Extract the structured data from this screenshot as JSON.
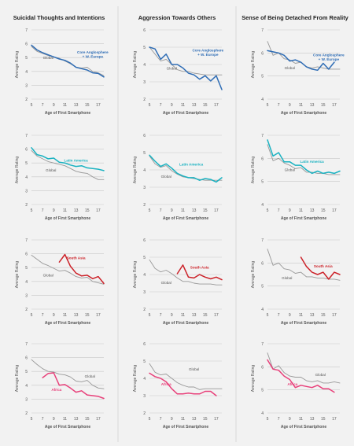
{
  "column_titles": [
    "Suicidal Thoughts and Intentions",
    "Aggression Towards Others",
    "Sense of Being Detached From Reality"
  ],
  "xlabel": "Age of First Smartphone",
  "ylabel": "Average Rating",
  "colors": {
    "background": "#f2f2f2",
    "gridline": "#c8c8c8",
    "global": "#999999",
    "label_text": "#555555",
    "title_text": "#222222"
  },
  "chart_data": [
    {
      "type": "line",
      "row": 0,
      "col": 0,
      "ylim": [
        2,
        7
      ],
      "yticks": [
        2,
        3,
        4,
        5,
        6,
        7
      ],
      "x": [
        5,
        6,
        7,
        8,
        9,
        10,
        11,
        12,
        13,
        14,
        15,
        16,
        17,
        18
      ],
      "series": [
        {
          "name": "Core Anglosphere + W. Europe",
          "color": "#2f6db5",
          "label_text": "Core Anglosphere\n+ W. Europe",
          "label_anchor": [
            16,
            5.3
          ],
          "values": [
            5.9,
            5.55,
            5.35,
            5.2,
            5.05,
            4.9,
            4.8,
            4.6,
            4.3,
            4.2,
            4.1,
            3.9,
            3.85,
            3.6
          ]
        },
        {
          "name": "Global",
          "color": "#999999",
          "label_text": "Global",
          "label_anchor": [
            8,
            4.9
          ],
          "values": [
            5.8,
            5.45,
            5.3,
            5.15,
            5.05,
            4.95,
            4.75,
            4.55,
            4.3,
            4.25,
            4.3,
            4.0,
            3.9,
            3.7
          ]
        }
      ]
    },
    {
      "type": "line",
      "row": 0,
      "col": 1,
      "ylim": [
        2,
        6
      ],
      "yticks": [
        2,
        3,
        4,
        5,
        6
      ],
      "x": [
        5,
        6,
        7,
        8,
        9,
        10,
        11,
        12,
        13,
        14,
        15,
        16,
        17,
        18
      ],
      "series": [
        {
          "name": "Core Anglosphere + W. Europe",
          "color": "#2f6db5",
          "label_text": "Core Anglosphere\n+ W. Europe",
          "label_anchor": [
            15.5,
            4.75
          ],
          "values": [
            5.0,
            4.9,
            4.3,
            4.6,
            4.0,
            4.0,
            3.8,
            3.5,
            3.4,
            3.15,
            3.35,
            3.05,
            3.35,
            2.55
          ]
        },
        {
          "name": "Global",
          "color": "#999999",
          "label_text": "Global",
          "label_anchor": [
            9,
            3.7
          ],
          "values": [
            5.0,
            4.6,
            4.2,
            4.3,
            4.0,
            3.7,
            3.6,
            3.6,
            3.5,
            3.45,
            3.4,
            3.4,
            3.4,
            3.4
          ]
        }
      ]
    },
    {
      "type": "line",
      "row": 0,
      "col": 2,
      "ylim": [
        4,
        7
      ],
      "yticks": [
        4,
        5,
        6,
        7
      ],
      "x": [
        5,
        6,
        7,
        8,
        9,
        10,
        11,
        12,
        13,
        14,
        15,
        16,
        17,
        18
      ],
      "series": [
        {
          "name": "Core Anglosphere + W. Europe",
          "color": "#2f6db5",
          "label_text": "Core Anglosphere\n+ W. Europe",
          "label_anchor": [
            16,
            5.85
          ],
          "values": [
            6.1,
            6.05,
            6.0,
            5.9,
            5.65,
            5.7,
            5.6,
            5.4,
            5.3,
            5.25,
            5.55,
            5.3,
            5.6,
            null
          ]
        },
        {
          "name": "Global",
          "color": "#999999",
          "label_text": "Global",
          "label_anchor": [
            9,
            5.3
          ],
          "values": [
            6.5,
            5.9,
            6.0,
            5.75,
            5.7,
            5.55,
            5.6,
            5.4,
            5.35,
            5.4,
            5.35,
            5.3,
            5.3,
            5.3
          ]
        }
      ]
    },
    {
      "type": "line",
      "row": 1,
      "col": 0,
      "ylim": [
        2,
        7
      ],
      "yticks": [
        2,
        3,
        4,
        5,
        6,
        7
      ],
      "x": [
        5,
        6,
        7,
        8,
        9,
        10,
        11,
        12,
        13,
        14,
        15,
        16,
        17,
        18
      ],
      "series": [
        {
          "name": "Latin America",
          "color": "#1ab2c1",
          "label_text": "Latin America",
          "label_anchor": [
            13,
            5.1
          ],
          "values": [
            6.1,
            5.6,
            5.5,
            5.3,
            5.35,
            5.05,
            5.0,
            4.85,
            4.75,
            4.8,
            4.65,
            4.6,
            4.55,
            4.45
          ]
        },
        {
          "name": "Global",
          "color": "#999999",
          "label_text": "Global",
          "label_anchor": [
            8.5,
            4.4
          ],
          "values": [
            5.9,
            5.5,
            5.3,
            5.1,
            5.0,
            4.9,
            4.8,
            4.6,
            4.4,
            4.3,
            4.25,
            4.0,
            3.8,
            3.8
          ]
        }
      ]
    },
    {
      "type": "line",
      "row": 1,
      "col": 1,
      "ylim": [
        2,
        6
      ],
      "yticks": [
        2,
        3,
        4,
        5,
        6
      ],
      "x": [
        5,
        6,
        7,
        8,
        9,
        10,
        11,
        12,
        13,
        14,
        15,
        16,
        17,
        18
      ],
      "series": [
        {
          "name": "Latin America",
          "color": "#1ab2c1",
          "label_text": "Latin America",
          "label_anchor": [
            12.5,
            4.25
          ],
          "values": [
            4.85,
            4.5,
            4.2,
            4.35,
            4.1,
            3.8,
            3.65,
            3.55,
            3.55,
            3.4,
            3.5,
            3.45,
            3.3,
            3.55
          ]
        },
        {
          "name": "Global",
          "color": "#999999",
          "label_text": "Global",
          "label_anchor": [
            8,
            3.55
          ],
          "values": [
            4.8,
            4.35,
            4.15,
            4.25,
            3.95,
            3.75,
            3.6,
            3.55,
            3.5,
            3.45,
            3.4,
            3.4,
            3.4,
            3.4
          ]
        }
      ]
    },
    {
      "type": "line",
      "row": 1,
      "col": 2,
      "ylim": [
        4,
        7
      ],
      "yticks": [
        4,
        5,
        6,
        7
      ],
      "x": [
        5,
        6,
        7,
        8,
        9,
        10,
        11,
        12,
        13,
        14,
        15,
        16,
        17,
        18
      ],
      "series": [
        {
          "name": "Latin America",
          "color": "#1ab2c1",
          "label_text": "Latin America",
          "label_anchor": [
            13,
            5.8
          ],
          "values": [
            6.8,
            6.1,
            6.25,
            5.85,
            5.85,
            5.7,
            5.7,
            5.5,
            5.35,
            5.45,
            5.35,
            5.4,
            5.35,
            5.45
          ]
        },
        {
          "name": "Global",
          "color": "#999999",
          "label_text": "Global",
          "label_anchor": [
            9,
            5.45
          ],
          "values": [
            6.6,
            5.9,
            6.0,
            5.8,
            5.7,
            5.55,
            5.6,
            5.4,
            5.4,
            5.35,
            5.35,
            5.3,
            5.3,
            5.3
          ]
        }
      ]
    },
    {
      "type": "line",
      "row": 2,
      "col": 0,
      "ylim": [
        2,
        7
      ],
      "yticks": [
        2,
        3,
        4,
        5,
        6,
        7
      ],
      "x": [
        5,
        6,
        7,
        8,
        9,
        10,
        11,
        12,
        13,
        14,
        15,
        16,
        17,
        18
      ],
      "series": [
        {
          "name": "South Asia",
          "color": "#cc2229",
          "label_text": "South Asia",
          "label_anchor": [
            13,
            5.6
          ],
          "values": [
            null,
            null,
            null,
            null,
            null,
            5.4,
            5.95,
            5.1,
            4.6,
            4.4,
            4.45,
            4.2,
            4.35,
            3.85
          ]
        },
        {
          "name": "Global",
          "color": "#999999",
          "label_text": "Global",
          "label_anchor": [
            8,
            4.35
          ],
          "values": [
            5.9,
            5.6,
            5.3,
            5.15,
            4.95,
            4.75,
            4.8,
            4.6,
            4.35,
            4.25,
            4.3,
            4.0,
            3.9,
            3.8
          ]
        }
      ]
    },
    {
      "type": "line",
      "row": 2,
      "col": 1,
      "ylim": [
        2,
        6
      ],
      "yticks": [
        2,
        3,
        4,
        5,
        6
      ],
      "x": [
        5,
        6,
        7,
        8,
        9,
        10,
        11,
        12,
        13,
        14,
        15,
        16,
        17,
        18
      ],
      "series": [
        {
          "name": "South Asia",
          "color": "#cc2229",
          "label_text": "South Asia",
          "label_anchor": [
            14,
            4.35
          ],
          "values": [
            null,
            null,
            null,
            null,
            null,
            4.05,
            4.55,
            3.85,
            3.8,
            4.0,
            3.85,
            3.75,
            3.85,
            3.7
          ]
        },
        {
          "name": "Global",
          "color": "#999999",
          "label_text": "Global",
          "label_anchor": [
            8,
            3.45
          ],
          "values": [
            4.85,
            4.35,
            4.15,
            4.25,
            4.05,
            3.8,
            3.6,
            3.6,
            3.5,
            3.45,
            3.45,
            3.45,
            3.4,
            3.4
          ]
        }
      ]
    },
    {
      "type": "line",
      "row": 2,
      "col": 2,
      "ylim": [
        4,
        7
      ],
      "yticks": [
        4,
        5,
        6,
        7
      ],
      "x": [
        5,
        6,
        7,
        8,
        9,
        10,
        11,
        12,
        13,
        14,
        15,
        16,
        17,
        18
      ],
      "series": [
        {
          "name": "South Asia",
          "color": "#cc2229",
          "label_text": "South Asia",
          "label_anchor": [
            15,
            5.8
          ],
          "values": [
            null,
            null,
            null,
            null,
            null,
            null,
            6.25,
            5.85,
            5.6,
            5.5,
            5.6,
            5.3,
            5.6,
            5.5
          ]
        },
        {
          "name": "Global",
          "color": "#999999",
          "label_text": "Global",
          "label_anchor": [
            8.5,
            5.3
          ],
          "values": [
            6.6,
            5.9,
            6.0,
            5.75,
            5.7,
            5.55,
            5.6,
            5.4,
            5.4,
            5.35,
            5.35,
            5.3,
            5.3,
            5.25
          ]
        }
      ]
    },
    {
      "type": "line",
      "row": 3,
      "col": 0,
      "ylim": [
        2,
        7
      ],
      "yticks": [
        2,
        3,
        4,
        5,
        6,
        7
      ],
      "x": [
        5,
        6,
        7,
        8,
        9,
        10,
        11,
        12,
        13,
        14,
        15,
        16,
        17,
        18
      ],
      "series": [
        {
          "name": "Africa",
          "color": "#e8407a",
          "label_text": "Africa",
          "label_anchor": [
            9.5,
            3.6
          ],
          "values": [
            null,
            null,
            4.55,
            4.85,
            4.9,
            4.0,
            4.05,
            3.8,
            3.5,
            3.6,
            3.3,
            3.25,
            3.2,
            3.05
          ]
        },
        {
          "name": "Global",
          "color": "#999999",
          "label_text": "Global",
          "label_anchor": [
            15.5,
            4.55
          ],
          "values": [
            5.85,
            5.5,
            5.2,
            5.0,
            4.95,
            4.8,
            4.75,
            4.6,
            4.3,
            4.25,
            4.35,
            4.0,
            3.8,
            3.75
          ]
        }
      ]
    },
    {
      "type": "line",
      "row": 3,
      "col": 1,
      "ylim": [
        2,
        6
      ],
      "yticks": [
        2,
        3,
        4,
        5,
        6
      ],
      "x": [
        5,
        6,
        7,
        8,
        9,
        10,
        11,
        12,
        13,
        14,
        15,
        16,
        17,
        18
      ],
      "series": [
        {
          "name": "Africa",
          "color": "#e8407a",
          "label_text": "Africa",
          "label_anchor": [
            8,
            3.6
          ],
          "values": [
            4.3,
            4.1,
            4.0,
            3.8,
            3.4,
            3.1,
            3.1,
            3.15,
            3.1,
            3.1,
            3.25,
            3.25,
            3.0,
            null
          ]
        },
        {
          "name": "Global",
          "color": "#999999",
          "label_text": "Global",
          "label_anchor": [
            13,
            4.45
          ],
          "values": [
            4.85,
            4.35,
            4.2,
            4.25,
            4.0,
            3.75,
            3.6,
            3.5,
            3.5,
            3.35,
            3.4,
            3.4,
            3.4,
            3.4
          ]
        }
      ]
    },
    {
      "type": "line",
      "row": 3,
      "col": 2,
      "ylim": [
        4,
        7
      ],
      "yticks": [
        4,
        5,
        6,
        7
      ],
      "x": [
        5,
        6,
        7,
        8,
        9,
        10,
        11,
        12,
        13,
        14,
        15,
        16,
        17,
        18
      ],
      "series": [
        {
          "name": "Africa",
          "color": "#e8407a",
          "label_text": "Africa",
          "label_anchor": [
            9.5,
            5.2
          ],
          "values": [
            6.3,
            5.9,
            5.85,
            5.6,
            5.45,
            5.1,
            5.2,
            5.15,
            5.1,
            5.2,
            5.05,
            5.05,
            4.9,
            null
          ]
        },
        {
          "name": "Global",
          "color": "#999999",
          "label_text": "Global",
          "label_anchor": [
            14.5,
            5.6
          ],
          "values": [
            6.6,
            5.9,
            6.05,
            5.75,
            5.6,
            5.55,
            5.55,
            5.4,
            5.35,
            5.4,
            5.3,
            5.3,
            5.35,
            5.3
          ]
        }
      ]
    }
  ]
}
